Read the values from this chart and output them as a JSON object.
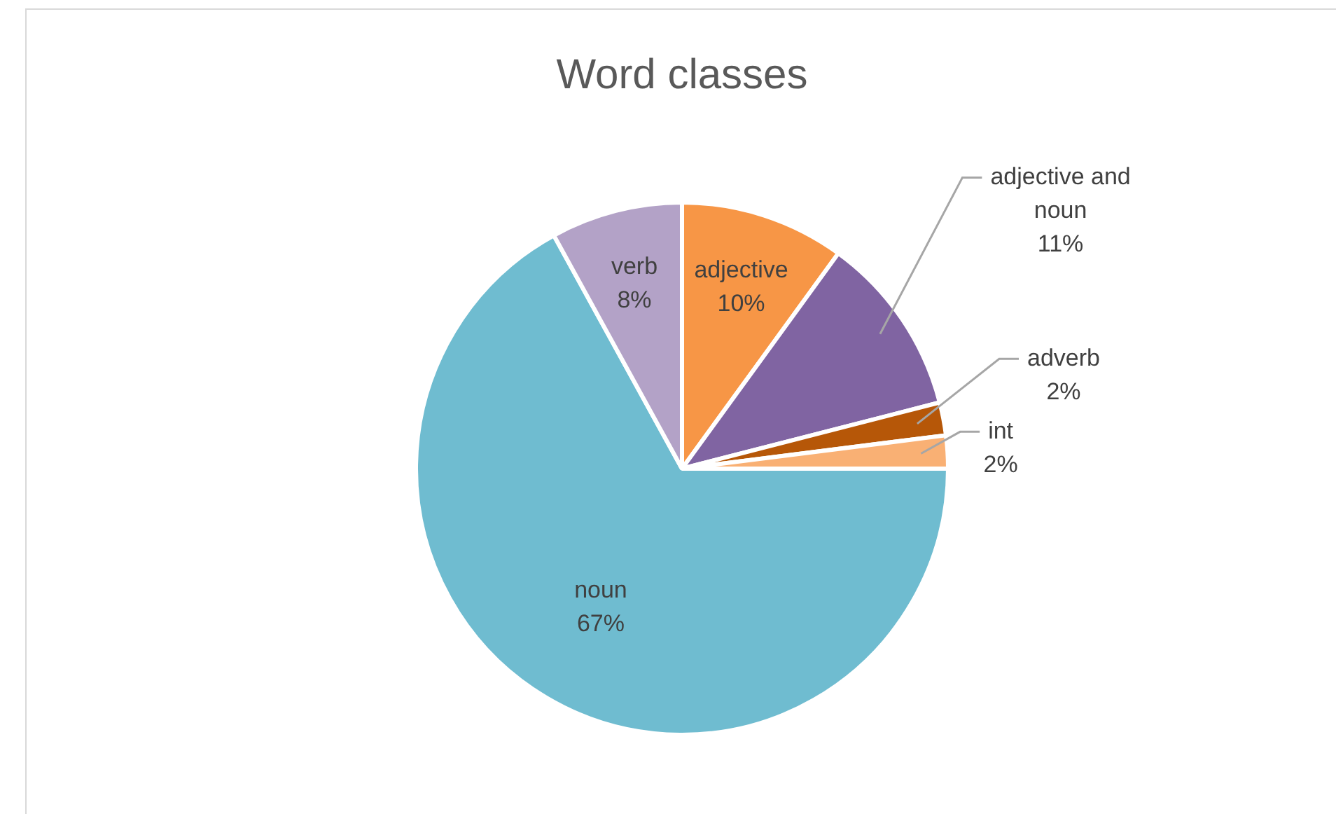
{
  "chart_data": {
    "type": "pie",
    "title": "Word classes",
    "categories": [
      "adjective",
      "adjective and noun",
      "adverb",
      "int",
      "noun",
      "verb"
    ],
    "values": [
      10,
      11,
      2,
      2,
      67,
      8
    ],
    "colors": [
      "#f79646",
      "#8064a2",
      "#b65708",
      "#f9b074",
      "#6fbcd0",
      "#b3a2c7"
    ],
    "value_labels": [
      "10%",
      "11%",
      "2%",
      "2%",
      "67%",
      "8%"
    ],
    "legend": false
  }
}
